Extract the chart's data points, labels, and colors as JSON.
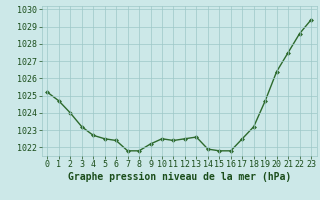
{
  "x": [
    0,
    1,
    2,
    3,
    4,
    5,
    6,
    7,
    8,
    9,
    10,
    11,
    12,
    13,
    14,
    15,
    16,
    17,
    18,
    19,
    20,
    21,
    22,
    23
  ],
  "y": [
    1025.2,
    1024.7,
    1024.0,
    1023.2,
    1022.7,
    1022.5,
    1022.4,
    1021.8,
    1021.8,
    1022.2,
    1022.5,
    1022.4,
    1022.5,
    1022.6,
    1021.9,
    1021.8,
    1021.8,
    1022.5,
    1023.2,
    1024.7,
    1026.4,
    1027.5,
    1028.6,
    1029.4
  ],
  "title": "Graphe pression niveau de la mer (hPa)",
  "xlabel_values": [
    0,
    1,
    2,
    3,
    4,
    5,
    6,
    7,
    8,
    9,
    10,
    11,
    12,
    13,
    14,
    15,
    16,
    17,
    18,
    19,
    20,
    21,
    22,
    23
  ],
  "ylim": [
    1021.5,
    1030.2
  ],
  "yticks": [
    1022,
    1023,
    1024,
    1025,
    1026,
    1027,
    1028,
    1029,
    1030
  ],
  "line_color": "#2d6a2d",
  "marker_color": "#2d6a2d",
  "bg_color": "#cce8e8",
  "grid_color": "#9ec8c8",
  "title_color": "#1a4d1a",
  "title_fontsize": 7.0,
  "tick_fontsize": 6.0,
  "marker": "D",
  "markersize": 2.0,
  "linewidth": 1.0
}
